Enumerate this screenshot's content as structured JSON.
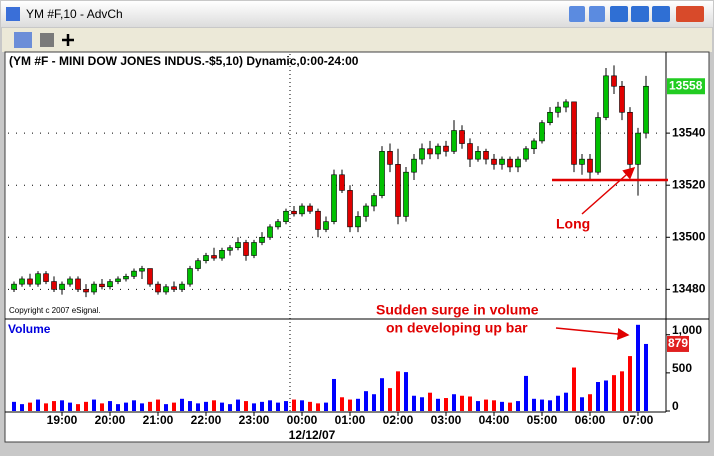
{
  "window": {
    "title": "YM #F,10 - AdvCh"
  },
  "chart_data": [
    {
      "type": "candlestick",
      "title": "(YM #F - MINI DOW JONES INDUS.-$5,10) Dynamic,0:00-24:00",
      "note": "Copyright c 2007 eSignal.",
      "open": [
        13480,
        13482,
        13484,
        13482,
        13486,
        13483,
        13480,
        13482,
        13484,
        13480,
        13479,
        13482,
        13481,
        13483,
        13484,
        13485,
        13487,
        13488,
        13482,
        13479,
        13481,
        13480,
        13482,
        13488,
        13491,
        13493,
        13492,
        13495,
        13496,
        13498,
        13493,
        13498,
        13500,
        13504,
        13506,
        13510,
        13509,
        13512,
        13510,
        13503,
        13506,
        13524,
        13518,
        13504,
        13508,
        13512,
        13516,
        13533,
        13528,
        13508,
        13525,
        13530,
        13534,
        13532,
        13535,
        13533,
        13541,
        13536,
        13530,
        13533,
        13530,
        13528,
        13530,
        13527,
        13530,
        13534,
        13537,
        13544,
        13548,
        13550,
        13552,
        13528,
        13530,
        13525,
        13546,
        13562,
        13558,
        13548,
        13528,
        13540
      ],
      "high": [
        13483,
        13485,
        13486,
        13487,
        13487,
        13485,
        13483,
        13485,
        13485,
        13482,
        13483,
        13484,
        13484,
        13485,
        13486,
        13488,
        13489,
        13488,
        13483,
        13482,
        13483,
        13483,
        13489,
        13492,
        13494,
        13496,
        13496,
        13497,
        13500,
        13499,
        13499,
        13502,
        13505,
        13507,
        13511,
        13512,
        13513,
        13513,
        13511,
        13508,
        13526,
        13526,
        13520,
        13510,
        13513,
        13517,
        13535,
        13536,
        13534,
        13527,
        13532,
        13536,
        13537,
        13536,
        13537,
        13545,
        13543,
        13538,
        13535,
        13534,
        13532,
        13531,
        13531,
        13531,
        13535,
        13538,
        13545,
        13550,
        13552,
        13553,
        13552,
        13532,
        13532,
        13548,
        13565,
        13566,
        13560,
        13550,
        13542,
        13562
      ],
      "low": [
        13479,
        13481,
        13481,
        13481,
        13482,
        13479,
        13478,
        13481,
        13479,
        13477,
        13478,
        13480,
        13480,
        13482,
        13483,
        13484,
        13484,
        13481,
        13478,
        13478,
        13479,
        13479,
        13481,
        13487,
        13490,
        13491,
        13491,
        13493,
        13495,
        13491,
        13492,
        13497,
        13499,
        13503,
        13505,
        13508,
        13508,
        13509,
        13500,
        13502,
        13505,
        13517,
        13502,
        13502,
        13506,
        13510,
        13515,
        13525,
        13505,
        13506,
        13522,
        13528,
        13530,
        13530,
        13531,
        13532,
        13534,
        13527,
        13529,
        13528,
        13526,
        13526,
        13525,
        13525,
        13529,
        13532,
        13536,
        13543,
        13546,
        13548,
        13525,
        13524,
        13522,
        13524,
        13545,
        13555,
        13545,
        13525,
        13516,
        13538
      ],
      "close": [
        13482,
        13484,
        13482,
        13486,
        13483,
        13480,
        13482,
        13484,
        13480,
        13479,
        13482,
        13481,
        13483,
        13484,
        13485,
        13487,
        13488,
        13482,
        13479,
        13481,
        13480,
        13482,
        13488,
        13491,
        13493,
        13492,
        13495,
        13496,
        13498,
        13493,
        13498,
        13500,
        13504,
        13506,
        13510,
        13509,
        13512,
        13510,
        13503,
        13506,
        13524,
        13518,
        13504,
        13508,
        13512,
        13516,
        13533,
        13528,
        13508,
        13525,
        13530,
        13534,
        13532,
        13535,
        13533,
        13541,
        13536,
        13530,
        13533,
        13530,
        13528,
        13530,
        13527,
        13530,
        13534,
        13537,
        13544,
        13548,
        13550,
        13552,
        13528,
        13530,
        13525,
        13546,
        13562,
        13558,
        13548,
        13528,
        13540,
        13558
      ],
      "up_color": "#00c000",
      "down_color": "#e00000",
      "ylim": [
        13469,
        13570
      ],
      "yticks": [
        13480,
        13500,
        13520,
        13540
      ],
      "last_value": 13558,
      "grid": true,
      "annotations": [
        {
          "text": "Long",
          "level": 13522,
          "color": "#e00000"
        }
      ]
    },
    {
      "type": "bar",
      "title": "Volume",
      "categories": [
        null,
        null,
        null,
        null,
        null,
        null,
        "19:00",
        null,
        null,
        null,
        null,
        null,
        "20:00",
        null,
        null,
        null,
        null,
        null,
        "21:00",
        null,
        null,
        null,
        null,
        null,
        "22:00",
        null,
        null,
        null,
        null,
        null,
        "23:00",
        null,
        null,
        null,
        null,
        null,
        "00:00",
        null,
        null,
        null,
        null,
        null,
        "01:00",
        null,
        null,
        null,
        null,
        null,
        "02:00",
        null,
        null,
        null,
        null,
        null,
        "03:00",
        null,
        null,
        null,
        null,
        null,
        "04:00",
        null,
        null,
        null,
        null,
        null,
        "05:00",
        null,
        null,
        null,
        null,
        null,
        "06:00",
        null,
        null,
        null,
        null,
        null,
        "07:00",
        null
      ],
      "date_label": "12/12/07",
      "values": [
        120,
        90,
        110,
        150,
        100,
        130,
        140,
        110,
        90,
        120,
        150,
        100,
        130,
        90,
        110,
        140,
        100,
        120,
        150,
        90,
        110,
        160,
        130,
        100,
        120,
        140,
        110,
        90,
        150,
        130,
        100,
        120,
        140,
        110,
        130,
        150,
        140,
        120,
        100,
        110,
        420,
        180,
        150,
        160,
        260,
        220,
        430,
        300,
        520,
        510,
        200,
        180,
        240,
        160,
        170,
        220,
        200,
        190,
        130,
        150,
        140,
        120,
        110,
        130,
        460,
        160,
        150,
        140,
        200,
        240,
        570,
        180,
        220,
        380,
        400,
        470,
        520,
        720,
        1130,
        879
      ],
      "up_color": "#0000ff",
      "down_color": "#ff0000",
      "ylim": [
        0,
        1180
      ],
      "yticks": [
        0,
        500,
        {
          "value": 1000,
          "label": "1,000"
        }
      ],
      "last_value": 879,
      "annotations": [
        {
          "text": "Sudden surge in volume",
          "color": "#e00000"
        },
        {
          "text": "on developing up bar",
          "color": "#e00000"
        }
      ]
    }
  ]
}
